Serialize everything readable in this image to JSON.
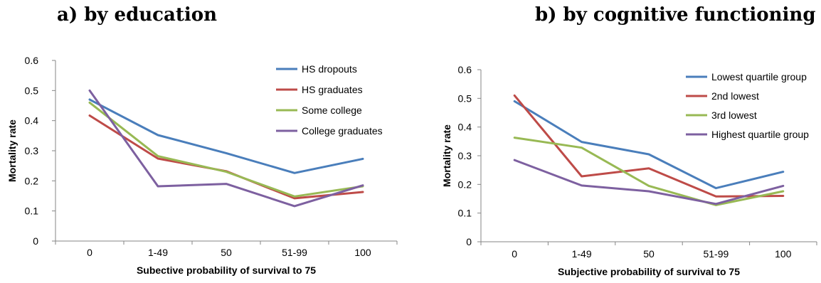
{
  "panels": {
    "a": {
      "title": "a)   by education"
    },
    "b": {
      "title": "b) by cognitive functioning"
    }
  },
  "colors": {
    "blue": "#4A7EBB",
    "red": "#BE4B48",
    "green": "#98B954",
    "purple": "#7D60A0",
    "grid": "#D9D9D9",
    "axis": "#868686"
  },
  "chart_data": [
    {
      "type": "line",
      "categories": [
        "0",
        "1-49",
        "50",
        "51-99",
        "100"
      ],
      "xlabel": "Subective probability of survival to 75",
      "ylabel": "Mortality rate",
      "ylim": [
        0,
        0.6
      ],
      "yticks": [
        "0",
        "0.1",
        "0.2",
        "0.3",
        "0.4",
        "0.5",
        "0.6"
      ],
      "grid": false,
      "legend_position": "top-right",
      "series": [
        {
          "name": "HS dropouts",
          "color": "#4A7EBB",
          "values": [
            0.47,
            0.352,
            0.292,
            0.226,
            0.273
          ]
        },
        {
          "name": "HS graduates",
          "color": "#BE4B48",
          "values": [
            0.417,
            0.274,
            0.232,
            0.142,
            0.163
          ]
        },
        {
          "name": "Some college",
          "color": "#98B954",
          "values": [
            0.46,
            0.282,
            0.23,
            0.148,
            0.182
          ]
        },
        {
          "name": "College graduates",
          "color": "#7D60A0",
          "values": [
            0.5,
            0.182,
            0.19,
            0.116,
            0.185
          ]
        }
      ]
    },
    {
      "type": "line",
      "categories": [
        "0",
        "1-49",
        "50",
        "51-99",
        "100"
      ],
      "xlabel": "Subjective probability of survival to 75",
      "ylabel": "Mortality rate",
      "ylim": [
        0,
        0.6
      ],
      "yticks": [
        "0",
        "0.1",
        "0.2",
        "0.3",
        "0.4",
        "0.5",
        "0.6"
      ],
      "grid": false,
      "legend_position": "top-right",
      "series": [
        {
          "name": "Lowest quartile group",
          "color": "#4A7EBB",
          "values": [
            0.49,
            0.348,
            0.305,
            0.187,
            0.244
          ]
        },
        {
          "name": "2nd lowest",
          "color": "#BE4B48",
          "values": [
            0.51,
            0.228,
            0.256,
            0.158,
            0.16
          ]
        },
        {
          "name": "3rd lowest",
          "color": "#98B954",
          "values": [
            0.363,
            0.328,
            0.195,
            0.128,
            0.176
          ]
        },
        {
          "name": "Highest quartile group",
          "color": "#7D60A0",
          "values": [
            0.285,
            0.196,
            0.176,
            0.132,
            0.195
          ]
        }
      ]
    }
  ]
}
